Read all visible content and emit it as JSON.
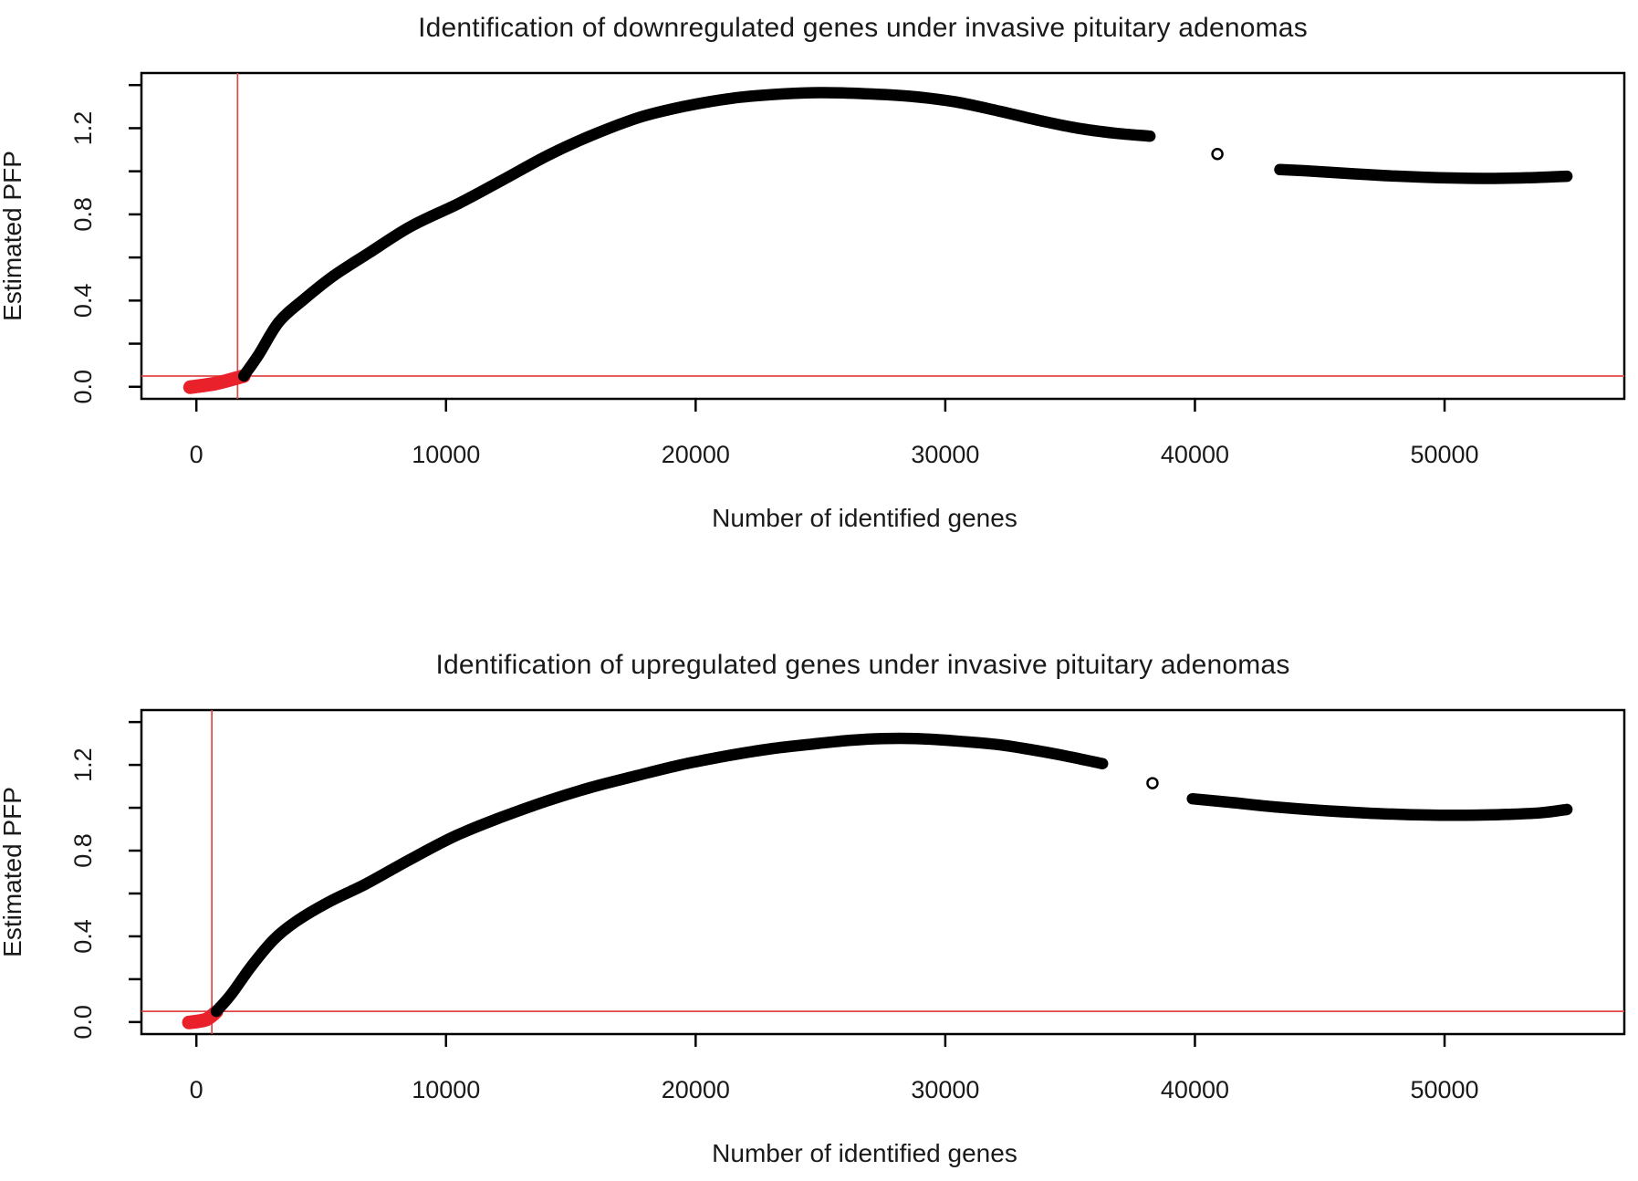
{
  "figure": {
    "background": "#ffffff",
    "description": "Two stacked R-style PFP scatter plots for gene identification"
  },
  "colors": {
    "curve": "#000000",
    "significant_points": "#e8212b",
    "threshold_line": "#e04848",
    "axis": "#000000",
    "text": "#1a1a1a",
    "outlier_fill": "#ffffff"
  },
  "chart_data": [
    {
      "type": "scatter",
      "title": "Identification of downregulated genes under invasive pituitary adenomas",
      "xlabel": "Number of identified genes",
      "ylabel": "Estimated PFP",
      "xlim": [
        -2200,
        57200
      ],
      "ylim": [
        -0.056,
        1.456
      ],
      "grid": false,
      "legend": "none",
      "xticks": [
        0,
        10000,
        20000,
        30000,
        40000,
        50000
      ],
      "xtick_labels": [
        "0",
        "10000",
        "20000",
        "30000",
        "40000",
        "50000"
      ],
      "yticks": [
        0.0,
        0.2,
        0.4,
        0.6,
        0.8,
        1.0,
        1.2,
        1.4
      ],
      "ytick_labels": [
        "0.0",
        "",
        "0.4",
        "",
        "0.8",
        "",
        "1.2",
        ""
      ],
      "threshold_hline_y": 0.05,
      "threshold_vline_x": 1650,
      "series": [
        {
          "name": "significant-genes",
          "style": "thick-band",
          "color_key": "significant_points",
          "stroke_width": 15,
          "points": [
            [
              -250,
              -0.002
            ],
            [
              250,
              0.006
            ],
            [
              800,
              0.016
            ],
            [
              1350,
              0.032
            ],
            [
              1900,
              0.05
            ]
          ]
        },
        {
          "name": "pfp-curve-main",
          "style": "thick-band",
          "color_key": "curve",
          "stroke_width": 12.5,
          "points": [
            [
              1900,
              0.05
            ],
            [
              2500,
              0.15
            ],
            [
              3300,
              0.3
            ],
            [
              4300,
              0.405
            ],
            [
              5500,
              0.515
            ],
            [
              6900,
              0.62
            ],
            [
              8600,
              0.745
            ],
            [
              10500,
              0.85
            ],
            [
              12200,
              0.955
            ],
            [
              14100,
              1.075
            ],
            [
              15800,
              1.165
            ],
            [
              17750,
              1.25
            ],
            [
              19500,
              1.3
            ],
            [
              21400,
              1.338
            ],
            [
              23200,
              1.357
            ],
            [
              25000,
              1.365
            ],
            [
              26800,
              1.36
            ],
            [
              28600,
              1.348
            ],
            [
              30400,
              1.322
            ],
            [
              32200,
              1.278
            ],
            [
              33800,
              1.235
            ],
            [
              35300,
              1.2
            ],
            [
              36800,
              1.177
            ],
            [
              38200,
              1.163
            ]
          ]
        },
        {
          "name": "pfp-curve-tail",
          "style": "thick-band",
          "color_key": "curve",
          "stroke_width": 12.5,
          "points": [
            [
              43400,
              1.008
            ],
            [
              44800,
              1.0
            ],
            [
              46400,
              0.988
            ],
            [
              48000,
              0.978
            ],
            [
              49800,
              0.97
            ],
            [
              51600,
              0.967
            ],
            [
              53300,
              0.97
            ],
            [
              54900,
              0.977
            ]
          ]
        }
      ],
      "outlier_point": {
        "x": 40900,
        "y": 1.08,
        "marker": "open-circle"
      }
    },
    {
      "type": "scatter",
      "title": "Identification of upregulated genes under invasive pituitary adenomas",
      "xlabel": "Number of identified genes",
      "ylabel": "Estimated PFP",
      "xlim": [
        -2200,
        57200
      ],
      "ylim": [
        -0.056,
        1.456
      ],
      "grid": false,
      "legend": "none",
      "xticks": [
        0,
        10000,
        20000,
        30000,
        40000,
        50000
      ],
      "xtick_labels": [
        "0",
        "10000",
        "20000",
        "30000",
        "40000",
        "50000"
      ],
      "yticks": [
        0.0,
        0.2,
        0.4,
        0.6,
        0.8,
        1.0,
        1.2,
        1.4
      ],
      "ytick_labels": [
        "0.0",
        "",
        "0.4",
        "",
        "0.8",
        "",
        "1.2",
        ""
      ],
      "threshold_hline_y": 0.05,
      "threshold_vline_x": 620,
      "series": [
        {
          "name": "significant-genes",
          "style": "thick-band",
          "color_key": "significant_points",
          "stroke_width": 15,
          "points": [
            [
              -300,
              -0.002
            ],
            [
              100,
              0.004
            ],
            [
              450,
              0.015
            ],
            [
              800,
              0.048
            ]
          ]
        },
        {
          "name": "pfp-curve-main",
          "style": "thick-band",
          "color_key": "curve",
          "stroke_width": 12.5,
          "points": [
            [
              800,
              0.05
            ],
            [
              1400,
              0.13
            ],
            [
              2200,
              0.26
            ],
            [
              3100,
              0.385
            ],
            [
              4000,
              0.47
            ],
            [
              5300,
              0.56
            ],
            [
              6800,
              0.645
            ],
            [
              8500,
              0.755
            ],
            [
              10400,
              0.87
            ],
            [
              12200,
              0.955
            ],
            [
              14000,
              1.03
            ],
            [
              15800,
              1.095
            ],
            [
              17650,
              1.15
            ],
            [
              19400,
              1.2
            ],
            [
              21250,
              1.242
            ],
            [
              23000,
              1.275
            ],
            [
              24900,
              1.3
            ],
            [
              26200,
              1.315
            ],
            [
              27500,
              1.323
            ],
            [
              28800,
              1.323
            ],
            [
              30400,
              1.312
            ],
            [
              32100,
              1.295
            ],
            [
              33500,
              1.27
            ],
            [
              34900,
              1.24
            ],
            [
              36300,
              1.206
            ]
          ]
        },
        {
          "name": "pfp-curve-tail",
          "style": "thick-band",
          "color_key": "curve",
          "stroke_width": 12.5,
          "points": [
            [
              39900,
              1.042
            ],
            [
              41500,
              1.024
            ],
            [
              43200,
              1.004
            ],
            [
              45000,
              0.988
            ],
            [
              46800,
              0.976
            ],
            [
              48600,
              0.968
            ],
            [
              50400,
              0.965
            ],
            [
              52200,
              0.968
            ],
            [
              53800,
              0.976
            ],
            [
              54900,
              0.992
            ]
          ]
        }
      ],
      "outlier_point": {
        "x": 38300,
        "y": 1.115,
        "marker": "open-circle"
      }
    }
  ]
}
